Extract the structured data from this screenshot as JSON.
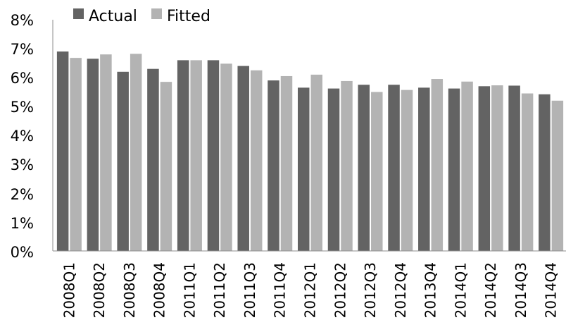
{
  "chart_data": {
    "type": "bar",
    "title": "",
    "xlabel": "",
    "ylabel": "",
    "ylim": [
      0,
      8
    ],
    "y_ticks": [
      "0%",
      "1%",
      "2%",
      "3%",
      "4%",
      "5%",
      "6%",
      "7%",
      "8%"
    ],
    "grid": false,
    "legend_position": "top-left",
    "categories": [
      "2008Q1",
      "2008Q2",
      "2008Q3",
      "2008Q4",
      "2011Q1",
      "2011Q2",
      "2011Q3",
      "2011Q4",
      "2012Q1",
      "2012Q2",
      "2012Q3",
      "2012Q4",
      "2013Q4",
      "2014Q1",
      "2014Q2",
      "2014Q3",
      "2014Q4"
    ],
    "series": [
      {
        "name": "Actual",
        "color": "#636363",
        "values": [
          6.9,
          6.65,
          6.2,
          6.3,
          6.6,
          6.6,
          6.4,
          5.9,
          5.65,
          5.62,
          5.75,
          5.75,
          5.65,
          5.62,
          5.7,
          5.72,
          5.42
        ]
      },
      {
        "name": "Fitted",
        "color": "#b3b3b3",
        "values": [
          6.68,
          6.8,
          6.82,
          5.85,
          6.6,
          6.48,
          6.25,
          6.05,
          6.1,
          5.88,
          5.5,
          5.57,
          5.95,
          5.86,
          5.73,
          5.45,
          5.2
        ]
      }
    ]
  }
}
